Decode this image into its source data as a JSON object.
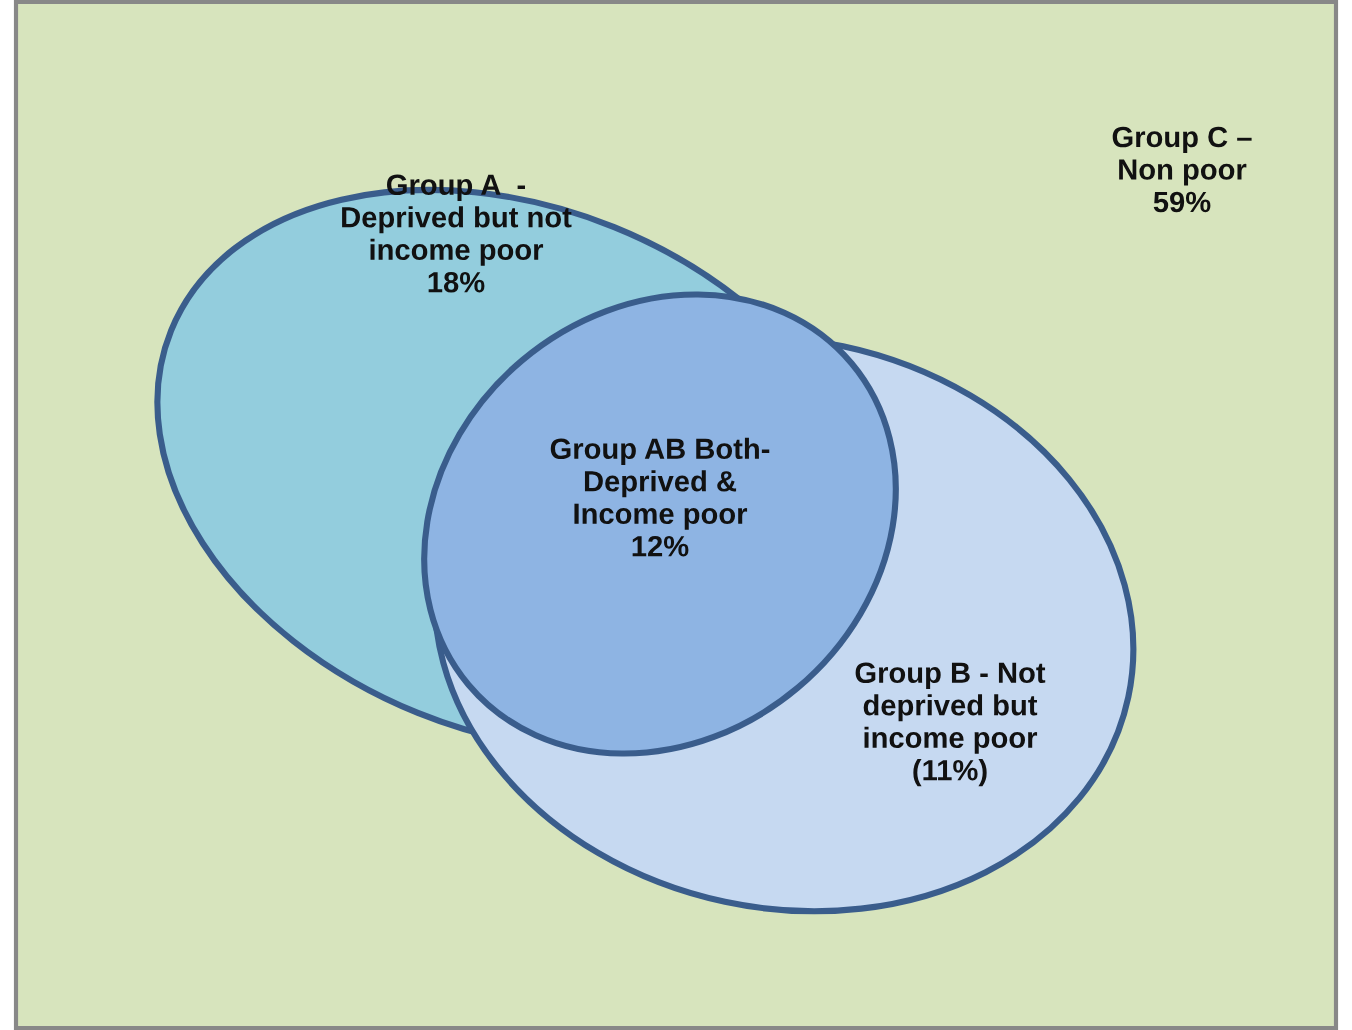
{
  "chart_data": {
    "type": "other",
    "categories": [
      "Group A  -\nDeprived but not\nincome poor",
      "Group AB Both-\nDeprived &\nIncome poor",
      "Group B - Not\ndeprived but\nincome poor",
      "Group C –\nNon poor"
    ],
    "values": [
      18,
      12,
      11,
      59
    ],
    "value_labels": [
      "18%",
      "12%",
      "(11%)",
      "59%"
    ],
    "colors": [
      "#93cddd",
      "#8eb4e3",
      "#c6d9f1",
      "#d7e4bd"
    ]
  }
}
